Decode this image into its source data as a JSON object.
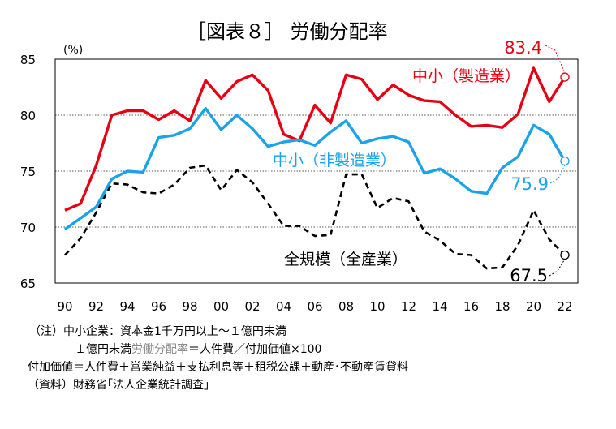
{
  "chart_data": {
    "type": "line",
    "title": "［図表８］ 労働分配率",
    "ylabel": "(%)",
    "ylim": [
      65,
      85
    ],
    "yticks": [
      65,
      70,
      75,
      80,
      85
    ],
    "xlim": [
      1990,
      2022
    ],
    "xticks": [
      {
        "year": 1990,
        "label": "90"
      },
      {
        "year": 1992,
        "label": "92"
      },
      {
        "year": 1994,
        "label": "94"
      },
      {
        "year": 1996,
        "label": "96"
      },
      {
        "year": 1998,
        "label": "98"
      },
      {
        "year": 2000,
        "label": "00"
      },
      {
        "year": 2002,
        "label": "02"
      },
      {
        "year": 2004,
        "label": "04"
      },
      {
        "year": 2006,
        "label": "06"
      },
      {
        "year": 2008,
        "label": "08"
      },
      {
        "year": 2010,
        "label": "10"
      },
      {
        "year": 2012,
        "label": "12"
      },
      {
        "year": 2014,
        "label": "14"
      },
      {
        "year": 2016,
        "label": "16"
      },
      {
        "year": 2018,
        "label": "18"
      },
      {
        "year": 2020,
        "label": "20"
      },
      {
        "year": 2022,
        "label": "22"
      }
    ],
    "x": [
      1990,
      1991,
      1992,
      1993,
      1994,
      1995,
      1996,
      1997,
      1998,
      1999,
      2000,
      2001,
      2002,
      2003,
      2004,
      2005,
      2006,
      2007,
      2008,
      2009,
      2010,
      2011,
      2012,
      2013,
      2014,
      2015,
      2016,
      2017,
      2018,
      2019,
      2020,
      2021,
      2022
    ],
    "grid": "horizontal dotted",
    "series": [
      {
        "name": "中小（製造業）",
        "color": "#e60012",
        "style": "solid",
        "end_label": "83.4",
        "values": [
          71.5,
          72.1,
          75.5,
          80.0,
          80.4,
          80.4,
          79.6,
          80.4,
          79.5,
          83.1,
          81.5,
          83.0,
          83.6,
          82.2,
          78.3,
          77.7,
          80.9,
          79.3,
          83.6,
          83.2,
          81.4,
          82.7,
          81.8,
          81.3,
          81.2,
          80.0,
          79.0,
          79.1,
          78.9,
          80.1,
          84.2,
          81.2,
          83.4
        ]
      },
      {
        "name": "中小（非製造業）",
        "color": "#1aa3e8",
        "style": "solid",
        "end_label": "75.9",
        "values": [
          69.8,
          70.8,
          71.8,
          74.3,
          75.0,
          74.9,
          78.0,
          78.2,
          78.8,
          80.6,
          78.7,
          80.0,
          78.8,
          77.2,
          77.6,
          77.8,
          77.3,
          78.5,
          79.5,
          77.5,
          77.9,
          78.1,
          77.6,
          74.8,
          75.2,
          74.3,
          73.2,
          73.0,
          75.3,
          76.3,
          79.1,
          78.3,
          75.9
        ]
      },
      {
        "name": "全規模（全産業）",
        "color": "#000000",
        "style": "dashed",
        "end_label": "67.5",
        "values": [
          67.5,
          69.0,
          71.3,
          73.9,
          73.8,
          73.1,
          73.0,
          73.8,
          75.3,
          75.5,
          73.3,
          75.1,
          74.0,
          72.1,
          70.1,
          70.1,
          69.2,
          69.3,
          74.7,
          74.7,
          71.7,
          72.6,
          72.3,
          69.6,
          68.8,
          67.6,
          67.5,
          66.3,
          66.4,
          68.4,
          71.5,
          68.9,
          67.5
        ]
      }
    ]
  },
  "notes": {
    "line1": "（注）中小企業：資本金1千万円以上～１億円未満",
    "line2_prefix": "１億円未満",
    "line2_gray": "労働分配率",
    "line2_suffix": "＝人件費／付加価値×100",
    "line3": "付加価値＝人件費＋営業純益＋支払利息等＋租税公課＋動産･不動産賃貸料",
    "line4": "（資料）財務省｢法人企業統計調査｣"
  }
}
